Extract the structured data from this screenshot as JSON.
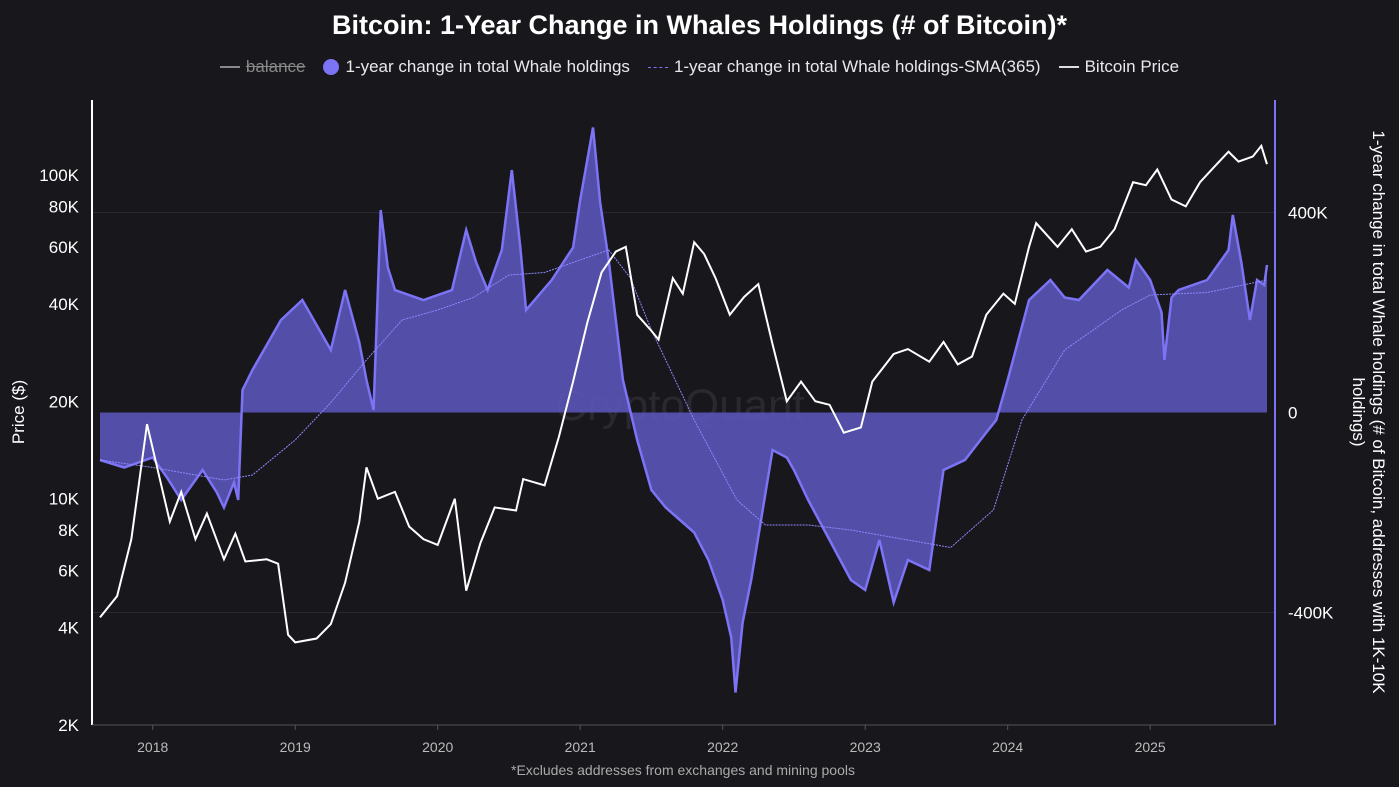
{
  "chart_data": {
    "type": "area",
    "title": "Bitcoin: 1-Year Change in Whales Holdings (# of Bitcoin)*",
    "footnote": "*Excludes addresses from exchanges and mining pools",
    "watermark": "CryptoQuant",
    "legend": [
      {
        "name": "balance",
        "hidden": true
      },
      {
        "name": "1-year change in total Whale holdings"
      },
      {
        "name": "1-year change in total Whale holdings-SMA(365)"
      },
      {
        "name": "Bitcoin Price"
      }
    ],
    "legend_position": "top",
    "x_ticks": [
      "2018",
      "2019",
      "2020",
      "2021",
      "2022",
      "2023",
      "2024",
      "2025"
    ],
    "xlim": [
      2017.63,
      2025.82
    ],
    "left_axis": {
      "label": "Price ($)",
      "scale": "log",
      "range": [
        2000,
        150000
      ],
      "ticks": [
        [
          2000,
          "2K"
        ],
        [
          4000,
          "4K"
        ],
        [
          6000,
          "6K"
        ],
        [
          8000,
          "8K"
        ],
        [
          10000,
          "10K"
        ],
        [
          20000,
          "20K"
        ],
        [
          40000,
          "40K"
        ],
        [
          60000,
          "60K"
        ],
        [
          80000,
          "80K"
        ],
        [
          100000,
          "100K"
        ]
      ]
    },
    "right_axis": {
      "label": "1-year change in total Whale holdings (# of Bitcoin, addresses with 1K-10K holdings)",
      "range": [
        -625000,
        625000
      ],
      "ticks": [
        [
          -400000,
          "-400K"
        ],
        [
          0,
          "0"
        ],
        [
          400000,
          "400K"
        ]
      ]
    },
    "colors": {
      "whale": "#7c74f5",
      "whale_fill": "#5a54b8",
      "sma": "#8f88ff",
      "price": "#ffffff",
      "background": "#18171c"
    },
    "series": [
      {
        "name": "Bitcoin Price",
        "axis": "left",
        "points": [
          [
            2017.63,
            4300
          ],
          [
            2017.75,
            5000
          ],
          [
            2017.85,
            7500
          ],
          [
            2017.96,
            17000
          ],
          [
            2018.05,
            11500
          ],
          [
            2018.12,
            8500
          ],
          [
            2018.2,
            10500
          ],
          [
            2018.3,
            7500
          ],
          [
            2018.38,
            9000
          ],
          [
            2018.5,
            6500
          ],
          [
            2018.58,
            7800
          ],
          [
            2018.65,
            6400
          ],
          [
            2018.8,
            6500
          ],
          [
            2018.88,
            6300
          ],
          [
            2018.95,
            3800
          ],
          [
            2019.0,
            3600
          ],
          [
            2019.15,
            3700
          ],
          [
            2019.25,
            4100
          ],
          [
            2019.35,
            5500
          ],
          [
            2019.45,
            8500
          ],
          [
            2019.5,
            12500
          ],
          [
            2019.58,
            10000
          ],
          [
            2019.7,
            10500
          ],
          [
            2019.8,
            8200
          ],
          [
            2019.9,
            7500
          ],
          [
            2020.0,
            7200
          ],
          [
            2020.12,
            10000
          ],
          [
            2020.2,
            5200
          ],
          [
            2020.3,
            7300
          ],
          [
            2020.4,
            9400
          ],
          [
            2020.55,
            9200
          ],
          [
            2020.6,
            11500
          ],
          [
            2020.75,
            11000
          ],
          [
            2020.85,
            15500
          ],
          [
            2020.95,
            23000
          ],
          [
            2021.05,
            35000
          ],
          [
            2021.15,
            50000
          ],
          [
            2021.25,
            58000
          ],
          [
            2021.32,
            60000
          ],
          [
            2021.4,
            37000
          ],
          [
            2021.5,
            33000
          ],
          [
            2021.55,
            31000
          ],
          [
            2021.65,
            48000
          ],
          [
            2021.72,
            43000
          ],
          [
            2021.8,
            62000
          ],
          [
            2021.87,
            57000
          ],
          [
            2021.95,
            48000
          ],
          [
            2022.05,
            37000
          ],
          [
            2022.15,
            42000
          ],
          [
            2022.25,
            46000
          ],
          [
            2022.35,
            30000
          ],
          [
            2022.45,
            20000
          ],
          [
            2022.55,
            23000
          ],
          [
            2022.65,
            20000
          ],
          [
            2022.75,
            19500
          ],
          [
            2022.85,
            16000
          ],
          [
            2022.97,
            16600
          ],
          [
            2023.05,
            23000
          ],
          [
            2023.2,
            28000
          ],
          [
            2023.3,
            29000
          ],
          [
            2023.45,
            26500
          ],
          [
            2023.55,
            30500
          ],
          [
            2023.65,
            26000
          ],
          [
            2023.75,
            27500
          ],
          [
            2023.85,
            37000
          ],
          [
            2023.97,
            43000
          ],
          [
            2024.05,
            40000
          ],
          [
            2024.15,
            60000
          ],
          [
            2024.2,
            71000
          ],
          [
            2024.35,
            60000
          ],
          [
            2024.45,
            68000
          ],
          [
            2024.55,
            58000
          ],
          [
            2024.65,
            60000
          ],
          [
            2024.75,
            68000
          ],
          [
            2024.88,
            95000
          ],
          [
            2024.97,
            93000
          ],
          [
            2025.05,
            104000
          ],
          [
            2025.15,
            84000
          ],
          [
            2025.25,
            80000
          ],
          [
            2025.35,
            95000
          ],
          [
            2025.45,
            106000
          ],
          [
            2025.55,
            118000
          ],
          [
            2025.62,
            110000
          ],
          [
            2025.72,
            114000
          ],
          [
            2025.78,
            123000
          ],
          [
            2025.82,
            108000
          ]
        ]
      },
      {
        "name": "1-year change in total Whale holdings",
        "axis": "right",
        "points": [
          [
            2017.63,
            -95000
          ],
          [
            2017.8,
            -110000
          ],
          [
            2018.0,
            -90000
          ],
          [
            2018.1,
            -130000
          ],
          [
            2018.2,
            -175000
          ],
          [
            2018.35,
            -115000
          ],
          [
            2018.45,
            -160000
          ],
          [
            2018.5,
            -190000
          ],
          [
            2018.57,
            -140000
          ],
          [
            2018.6,
            -175000
          ],
          [
            2018.63,
            45000
          ],
          [
            2018.7,
            85000
          ],
          [
            2018.9,
            185000
          ],
          [
            2019.05,
            225000
          ],
          [
            2019.12,
            190000
          ],
          [
            2019.25,
            125000
          ],
          [
            2019.35,
            245000
          ],
          [
            2019.45,
            140000
          ],
          [
            2019.5,
            65000
          ],
          [
            2019.55,
            5000
          ],
          [
            2019.6,
            405000
          ],
          [
            2019.65,
            290000
          ],
          [
            2019.7,
            245000
          ],
          [
            2019.9,
            225000
          ],
          [
            2020.1,
            245000
          ],
          [
            2020.2,
            365000
          ],
          [
            2020.27,
            300000
          ],
          [
            2020.35,
            245000
          ],
          [
            2020.45,
            325000
          ],
          [
            2020.52,
            485000
          ],
          [
            2020.58,
            330000
          ],
          [
            2020.62,
            205000
          ],
          [
            2020.8,
            265000
          ],
          [
            2020.95,
            330000
          ],
          [
            2021.0,
            425000
          ],
          [
            2021.09,
            570000
          ],
          [
            2021.14,
            420000
          ],
          [
            2021.2,
            305000
          ],
          [
            2021.3,
            65000
          ],
          [
            2021.4,
            -55000
          ],
          [
            2021.5,
            -155000
          ],
          [
            2021.6,
            -190000
          ],
          [
            2021.7,
            -215000
          ],
          [
            2021.8,
            -240000
          ],
          [
            2021.9,
            -295000
          ],
          [
            2022.0,
            -375000
          ],
          [
            2022.06,
            -450000
          ],
          [
            2022.09,
            -560000
          ],
          [
            2022.14,
            -420000
          ],
          [
            2022.2,
            -335000
          ],
          [
            2022.35,
            -75000
          ],
          [
            2022.45,
            -90000
          ],
          [
            2022.5,
            -115000
          ],
          [
            2022.6,
            -175000
          ],
          [
            2022.75,
            -255000
          ],
          [
            2022.9,
            -335000
          ],
          [
            2023.0,
            -355000
          ],
          [
            2023.1,
            -255000
          ],
          [
            2023.2,
            -380000
          ],
          [
            2023.3,
            -295000
          ],
          [
            2023.45,
            -315000
          ],
          [
            2023.55,
            -115000
          ],
          [
            2023.7,
            -95000
          ],
          [
            2023.85,
            -40000
          ],
          [
            2023.92,
            -15000
          ],
          [
            2024.0,
            65000
          ],
          [
            2024.15,
            225000
          ],
          [
            2024.3,
            265000
          ],
          [
            2024.4,
            230000
          ],
          [
            2024.5,
            225000
          ],
          [
            2024.7,
            285000
          ],
          [
            2024.85,
            250000
          ],
          [
            2024.9,
            305000
          ],
          [
            2025.0,
            265000
          ],
          [
            2025.08,
            200000
          ],
          [
            2025.1,
            105000
          ],
          [
            2025.15,
            230000
          ],
          [
            2025.2,
            245000
          ],
          [
            2025.4,
            265000
          ],
          [
            2025.55,
            325000
          ],
          [
            2025.58,
            395000
          ],
          [
            2025.64,
            300000
          ],
          [
            2025.7,
            185000
          ],
          [
            2025.75,
            265000
          ],
          [
            2025.8,
            255000
          ],
          [
            2025.82,
            295000
          ]
        ]
      },
      {
        "name": "1-year change in total Whale holdings-SMA(365)",
        "axis": "right",
        "points": [
          [
            2017.63,
            -95000
          ],
          [
            2018.0,
            -110000
          ],
          [
            2018.5,
            -135000
          ],
          [
            2018.7,
            -125000
          ],
          [
            2019.0,
            -55000
          ],
          [
            2019.25,
            20000
          ],
          [
            2019.5,
            105000
          ],
          [
            2019.75,
            185000
          ],
          [
            2020.0,
            205000
          ],
          [
            2020.25,
            230000
          ],
          [
            2020.5,
            275000
          ],
          [
            2020.75,
            280000
          ],
          [
            2021.0,
            305000
          ],
          [
            2021.2,
            325000
          ],
          [
            2021.35,
            270000
          ],
          [
            2021.5,
            165000
          ],
          [
            2021.8,
            -15000
          ],
          [
            2022.1,
            -175000
          ],
          [
            2022.3,
            -225000
          ],
          [
            2022.6,
            -225000
          ],
          [
            2022.9,
            -235000
          ],
          [
            2023.3,
            -255000
          ],
          [
            2023.6,
            -270000
          ],
          [
            2023.9,
            -195000
          ],
          [
            2024.1,
            -15000
          ],
          [
            2024.4,
            125000
          ],
          [
            2024.8,
            205000
          ],
          [
            2025.0,
            235000
          ],
          [
            2025.4,
            240000
          ],
          [
            2025.82,
            265000
          ]
        ]
      }
    ]
  }
}
